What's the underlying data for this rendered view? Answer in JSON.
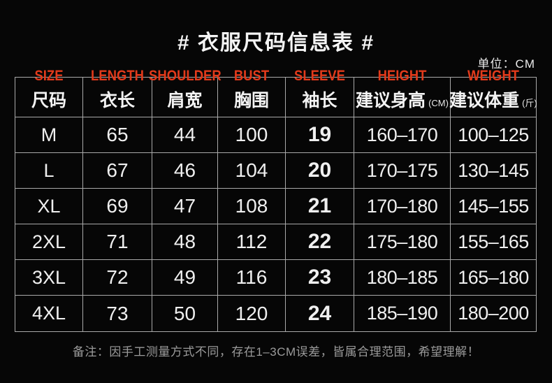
{
  "chart_data": {
    "type": "table",
    "title": "# 衣服尺码信息表 #",
    "unit_label": "单位：CM",
    "columns": [
      {
        "en": "SIZE",
        "zh": "尺码",
        "suffix": ""
      },
      {
        "en": "LENGTH",
        "zh": "衣长",
        "suffix": ""
      },
      {
        "en": "SHOULDER",
        "zh": "肩宽",
        "suffix": ""
      },
      {
        "en": "BUST",
        "zh": "胸围",
        "suffix": ""
      },
      {
        "en": "SLEEVE",
        "zh": "袖长",
        "suffix": ""
      },
      {
        "en": "HEIGHT",
        "zh": "建议身高",
        "suffix": "(CM)"
      },
      {
        "en": "WEIGHT",
        "zh": "建议体重",
        "suffix": "(斤)"
      }
    ],
    "rows": [
      [
        "M",
        "65",
        "44",
        "100",
        "19",
        "160–170",
        "100–125"
      ],
      [
        "L",
        "67",
        "46",
        "104",
        "20",
        "170–175",
        "130–145"
      ],
      [
        "XL",
        "69",
        "47",
        "108",
        "21",
        "170–180",
        "145–155"
      ],
      [
        "2XL",
        "71",
        "48",
        "112",
        "22",
        "175–180",
        "155–165"
      ],
      [
        "3XL",
        "72",
        "49",
        "116",
        "23",
        "180–185",
        "165–180"
      ],
      [
        "4XL",
        "73",
        "50",
        "120",
        "24",
        "185–190",
        "180–200"
      ]
    ],
    "note": "备注：因手工测量方式不同，存在1–3CM误差，皆属合理范围，希望理解！",
    "layout": {
      "grid": true,
      "header_style": "red-english-over-chinese"
    }
  },
  "colors": {
    "background": "#060606",
    "text_white": "#efefef",
    "accent_red": "#e23a1b",
    "border_gray": "#a9a9a9",
    "note_gray": "#9b9b9b"
  }
}
